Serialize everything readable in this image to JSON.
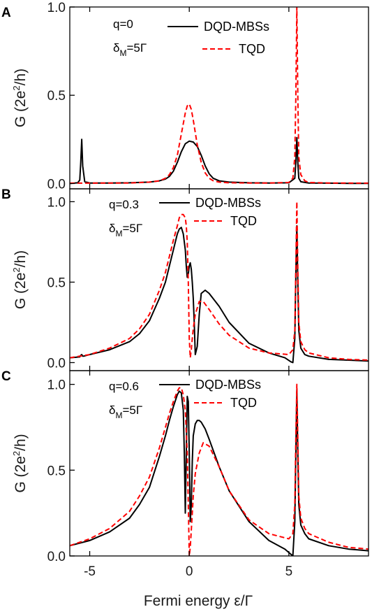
{
  "chart_data": [
    {
      "type": "line",
      "panel_label": "A",
      "annotation_q": "q=0",
      "annotation_delta": "δ",
      "annotation_delta_sub": "M",
      "annotation_delta_val": "=5Γ",
      "ylabel": "G (2e",
      "ylabel_sup": "2",
      "ylabel_end": "/h)",
      "xlim": [
        -6,
        9
      ],
      "ylim": [
        -0.03,
        1.0
      ],
      "x_ticks": [
        -5,
        0,
        5
      ],
      "y_ticks": [
        "0.0",
        "0.5",
        "1.0"
      ],
      "series": [
        {
          "name": "DQD-MBSs",
          "color": "#000000",
          "style": "solid",
          "x": [
            -6.0,
            -5.6,
            -5.5,
            -5.45,
            -5.4,
            -5.35,
            -5.25,
            -5.0,
            -4.0,
            -3.0,
            -2.0,
            -1.5,
            -1.2,
            -1.0,
            -0.8,
            -0.6,
            -0.4,
            -0.2,
            0.0,
            0.2,
            0.4,
            0.6,
            0.8,
            1.0,
            1.2,
            1.5,
            2.0,
            3.0,
            4.0,
            5.0,
            5.3,
            5.35,
            5.4,
            5.45,
            5.5,
            5.6,
            6.0,
            7.0,
            8.0,
            9.0
          ],
          "y": [
            0.0,
            0.004,
            0.02,
            0.12,
            0.25,
            0.1,
            0.01,
            0.003,
            0.003,
            0.004,
            0.008,
            0.015,
            0.025,
            0.04,
            0.07,
            0.12,
            0.18,
            0.225,
            0.24,
            0.235,
            0.21,
            0.16,
            0.1,
            0.055,
            0.03,
            0.015,
            0.008,
            0.004,
            0.003,
            0.004,
            0.03,
            0.12,
            0.26,
            0.12,
            0.03,
            0.01,
            0.003,
            0.002,
            0.001,
            0.001
          ]
        },
        {
          "name": "TQD",
          "color": "#ff0000",
          "style": "dashed",
          "x": [
            -6.0,
            -3.0,
            -2.0,
            -1.5,
            -1.2,
            -1.0,
            -0.8,
            -0.6,
            -0.4,
            -0.2,
            -0.1,
            0.0,
            0.1,
            0.2,
            0.4,
            0.6,
            0.8,
            1.0,
            1.2,
            1.5,
            2.0,
            3.0,
            4.0,
            5.0,
            5.2,
            5.3,
            5.35,
            5.4,
            5.45,
            5.5,
            5.6,
            5.8,
            6.0,
            7.0,
            9.0
          ],
          "y": [
            0.002,
            0.003,
            0.008,
            0.015,
            0.03,
            0.05,
            0.09,
            0.16,
            0.28,
            0.4,
            0.44,
            0.45,
            0.42,
            0.36,
            0.22,
            0.12,
            0.06,
            0.03,
            0.016,
            0.008,
            0.004,
            0.003,
            0.003,
            0.006,
            0.03,
            0.15,
            0.5,
            1.0,
            0.5,
            0.15,
            0.05,
            0.015,
            0.006,
            0.003,
            0.002
          ]
        }
      ]
    },
    {
      "type": "line",
      "panel_label": "B",
      "annotation_q": "q=0.3",
      "annotation_delta": "δ",
      "annotation_delta_sub": "M",
      "annotation_delta_val": "=5Γ",
      "ylabel": "G (2e",
      "ylabel_sup": "2",
      "ylabel_end": "/h)",
      "xlim": [
        -6,
        9
      ],
      "ylim": [
        -0.05,
        1.08
      ],
      "x_ticks": [
        -5,
        0,
        5
      ],
      "y_ticks": [
        "0.0",
        "0.5",
        "1.0"
      ],
      "series": [
        {
          "name": "DQD-MBSs",
          "color": "#000000",
          "style": "solid",
          "x": [
            -6.0,
            -5.5,
            -5.45,
            -5.4,
            -5.35,
            -5.3,
            -5.0,
            -4.0,
            -3.0,
            -2.5,
            -2.0,
            -1.5,
            -1.2,
            -1.0,
            -0.8,
            -0.6,
            -0.5,
            -0.4,
            -0.3,
            -0.2,
            -0.15,
            -0.1,
            -0.05,
            0.0,
            0.05,
            0.1,
            0.15,
            0.2,
            0.25,
            0.3,
            0.4,
            0.5,
            0.6,
            0.8,
            1.0,
            1.5,
            2.0,
            3.0,
            4.0,
            4.8,
            5.1,
            5.2,
            5.3,
            5.35,
            5.4,
            5.45,
            5.5,
            5.6,
            5.8,
            6.0,
            7.0,
            8.0,
            9.0
          ],
          "y": [
            0.03,
            0.035,
            0.045,
            0.05,
            0.04,
            0.04,
            0.05,
            0.08,
            0.13,
            0.18,
            0.26,
            0.4,
            0.5,
            0.6,
            0.7,
            0.8,
            0.83,
            0.84,
            0.8,
            0.7,
            0.6,
            0.53,
            0.55,
            0.6,
            0.62,
            0.58,
            0.5,
            0.4,
            0.25,
            0.05,
            0.1,
            0.3,
            0.43,
            0.45,
            0.43,
            0.35,
            0.25,
            0.12,
            0.06,
            0.03,
            0.005,
            0.0,
            0.15,
            0.55,
            0.85,
            0.5,
            0.2,
            0.09,
            0.05,
            0.04,
            0.02,
            0.015,
            0.01
          ]
        },
        {
          "name": "TQD",
          "color": "#ff0000",
          "style": "dashed",
          "x": [
            -6.0,
            -5.0,
            -4.0,
            -3.0,
            -2.5,
            -2.0,
            -1.5,
            -1.2,
            -1.0,
            -0.8,
            -0.6,
            -0.5,
            -0.4,
            -0.3,
            -0.2,
            -0.15,
            -0.1,
            -0.05,
            0.0,
            0.05,
            0.1,
            0.15,
            0.2,
            0.3,
            0.5,
            0.7,
            1.0,
            1.5,
            2.0,
            3.0,
            4.0,
            5.0,
            5.2,
            5.3,
            5.35,
            5.4,
            5.45,
            5.5,
            5.6,
            5.8,
            6.0,
            7.0,
            8.0,
            9.0
          ],
          "y": [
            0.03,
            0.05,
            0.09,
            0.15,
            0.21,
            0.3,
            0.45,
            0.56,
            0.66,
            0.76,
            0.85,
            0.9,
            0.92,
            0.92,
            0.9,
            0.85,
            0.75,
            0.5,
            0.15,
            0.03,
            0.08,
            0.15,
            0.21,
            0.3,
            0.38,
            0.38,
            0.33,
            0.24,
            0.17,
            0.09,
            0.06,
            0.05,
            0.08,
            0.2,
            0.6,
            1.0,
            0.6,
            0.25,
            0.13,
            0.08,
            0.06,
            0.03,
            0.02,
            0.015
          ]
        }
      ]
    },
    {
      "type": "line",
      "panel_label": "C",
      "annotation_q": "q=0.6",
      "annotation_delta": "δ",
      "annotation_delta_sub": "M",
      "annotation_delta_val": "=5Γ",
      "ylabel": "G (2e",
      "ylabel_sup": "2",
      "ylabel_end": "/h)",
      "xlim": [
        -6,
        9
      ],
      "ylim": [
        0.0,
        1.08
      ],
      "x_ticks": [
        -5,
        0,
        5
      ],
      "x_tick_labels": [
        "-5",
        "0",
        "5"
      ],
      "y_ticks": [
        "0.0",
        "0.5",
        "1.0"
      ],
      "xlabel": "Fermi energy ε/Γ",
      "series": [
        {
          "name": "DQD-MBSs",
          "color": "#000000",
          "style": "solid",
          "x": [
            -6.0,
            -5.0,
            -4.0,
            -3.0,
            -2.5,
            -2.0,
            -1.5,
            -1.2,
            -1.0,
            -0.8,
            -0.6,
            -0.5,
            -0.4,
            -0.3,
            -0.25,
            -0.2,
            -0.15,
            -0.1,
            -0.05,
            0.0,
            0.05,
            0.1,
            0.15,
            0.2,
            0.3,
            0.4,
            0.5,
            0.6,
            0.8,
            1.0,
            1.5,
            2.0,
            3.0,
            4.0,
            4.8,
            5.1,
            5.2,
            5.3,
            5.35,
            5.4,
            5.45,
            5.5,
            5.6,
            5.8,
            6.0,
            7.0,
            8.0,
            9.0
          ],
          "y": [
            0.06,
            0.09,
            0.14,
            0.22,
            0.3,
            0.4,
            0.58,
            0.7,
            0.79,
            0.87,
            0.94,
            0.96,
            0.95,
            0.85,
            0.6,
            0.25,
            0.6,
            0.93,
            0.9,
            0.6,
            0.2,
            0.3,
            0.55,
            0.7,
            0.77,
            0.79,
            0.79,
            0.78,
            0.74,
            0.68,
            0.52,
            0.38,
            0.2,
            0.09,
            0.04,
            0.01,
            0.0,
            0.2,
            0.6,
            0.97,
            0.6,
            0.3,
            0.18,
            0.13,
            0.1,
            0.06,
            0.04,
            0.03
          ]
        },
        {
          "name": "TQD",
          "color": "#ff0000",
          "style": "dashed",
          "x": [
            -6.0,
            -5.0,
            -4.0,
            -3.0,
            -2.5,
            -2.0,
            -1.5,
            -1.2,
            -1.0,
            -0.8,
            -0.6,
            -0.5,
            -0.4,
            -0.3,
            -0.2,
            -0.1,
            -0.05,
            0.0,
            0.05,
            0.1,
            0.15,
            0.2,
            0.3,
            0.5,
            0.7,
            1.0,
            1.5,
            2.0,
            3.0,
            4.0,
            5.0,
            5.2,
            5.3,
            5.35,
            5.4,
            5.45,
            5.5,
            5.6,
            5.8,
            6.0,
            7.0,
            8.0,
            9.0
          ],
          "y": [
            0.06,
            0.1,
            0.16,
            0.26,
            0.35,
            0.46,
            0.63,
            0.75,
            0.83,
            0.9,
            0.96,
            0.98,
            0.98,
            0.94,
            0.85,
            0.6,
            0.3,
            0.0,
            0.05,
            0.15,
            0.25,
            0.35,
            0.48,
            0.6,
            0.66,
            0.64,
            0.52,
            0.38,
            0.21,
            0.13,
            0.1,
            0.13,
            0.3,
            0.7,
            1.0,
            0.7,
            0.35,
            0.22,
            0.16,
            0.13,
            0.08,
            0.05,
            0.04
          ]
        }
      ]
    }
  ]
}
